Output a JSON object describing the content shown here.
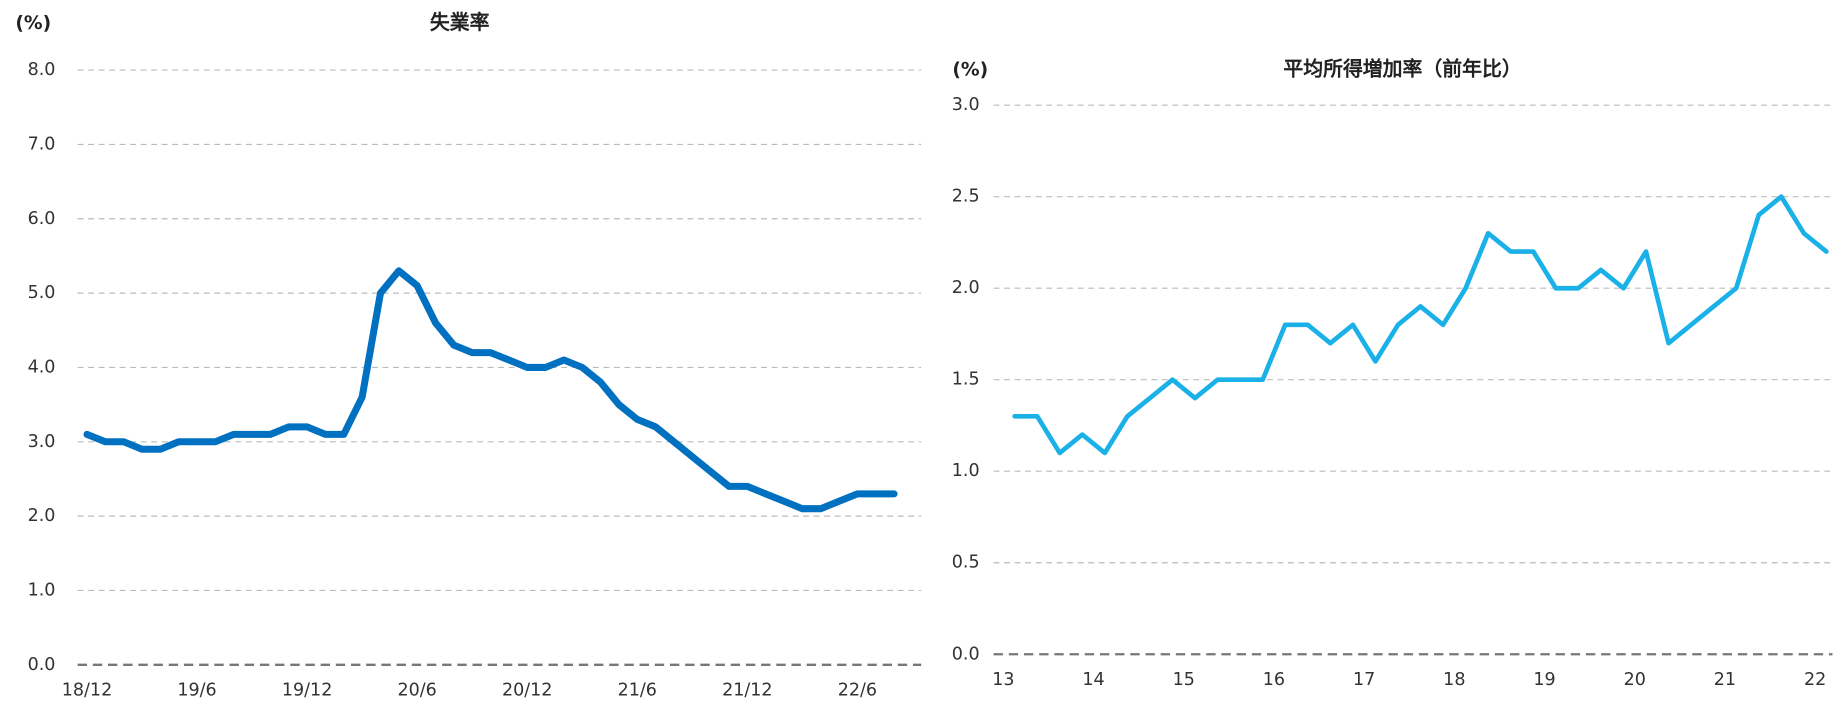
{
  "chart_data": [
    {
      "type": "line",
      "title": "失業率",
      "y_label": "(%)",
      "categories": [
        "18/12",
        null,
        null,
        null,
        null,
        null,
        "19/6",
        null,
        null,
        null,
        null,
        null,
        "19/12",
        null,
        null,
        null,
        null,
        null,
        "20/6",
        null,
        null,
        null,
        null,
        null,
        "20/12",
        null,
        null,
        null,
        null,
        null,
        "21/6",
        null,
        null,
        null,
        null,
        null,
        "21/12",
        null,
        null,
        null,
        null,
        null,
        "22/6",
        null,
        null
      ],
      "series": [
        {
          "name": "失業率",
          "color": "#0070c0",
          "values": [
            3.1,
            3.0,
            3.0,
            2.9,
            2.9,
            3.0,
            3.0,
            3.0,
            3.1,
            3.1,
            3.1,
            3.2,
            3.2,
            3.1,
            3.1,
            3.6,
            5.0,
            5.3,
            5.1,
            4.6,
            4.3,
            4.2,
            4.2,
            4.1,
            4.0,
            4.0,
            4.1,
            4.0,
            3.8,
            3.5,
            3.3,
            3.2,
            3.0,
            2.8,
            2.6,
            2.4,
            2.4,
            2.3,
            2.2,
            2.1,
            2.1,
            2.2,
            2.3,
            2.3,
            2.3
          ]
        }
      ],
      "ylim": [
        0,
        8
      ],
      "yticks": [
        {
          "value": 0,
          "label": "0.0"
        },
        {
          "value": 1,
          "label": "1.0"
        },
        {
          "value": 2,
          "label": "2.0"
        },
        {
          "value": 3,
          "label": "3.0"
        },
        {
          "value": 4,
          "label": "4.0"
        },
        {
          "value": 5,
          "label": "5.0"
        },
        {
          "value": 6,
          "label": "6.0"
        },
        {
          "value": 7,
          "label": "7.0"
        },
        {
          "value": 8,
          "label": "8.0"
        }
      ],
      "grid": true
    },
    {
      "type": "line",
      "title": "平均所得増加率（前年比）",
      "y_label": "(%)",
      "categories": [
        "13",
        null,
        null,
        null,
        "14",
        null,
        null,
        null,
        "15",
        null,
        null,
        null,
        "16",
        null,
        null,
        null,
        "17",
        null,
        null,
        null,
        "18",
        null,
        null,
        null,
        "19",
        null,
        null,
        null,
        "20",
        null,
        null,
        null,
        "21",
        null,
        null,
        null,
        "22"
      ],
      "series": [
        {
          "name": "平均所得増加率",
          "color": "#1ab0e8",
          "values": [
            1.3,
            1.3,
            1.1,
            1.2,
            1.1,
            1.3,
            1.4,
            1.5,
            1.4,
            1.5,
            1.5,
            1.5,
            1.8,
            1.8,
            1.7,
            1.8,
            1.6,
            1.8,
            1.9,
            1.8,
            2.0,
            2.3,
            2.2,
            2.2,
            2.0,
            2.0,
            2.1,
            2.0,
            2.2,
            1.7,
            1.8,
            1.9,
            2.0,
            2.4,
            2.5,
            2.3,
            2.2
          ]
        }
      ],
      "ylim": [
        0,
        3
      ],
      "yticks": [
        {
          "value": 0,
          "label": "0.0"
        },
        0.5,
        {
          "value": 1,
          "label": "1.0"
        },
        1.5,
        {
          "value": 2,
          "label": "2.0"
        },
        2.5,
        {
          "value": 3,
          "label": "3.0"
        }
      ],
      "grid": true
    }
  ]
}
